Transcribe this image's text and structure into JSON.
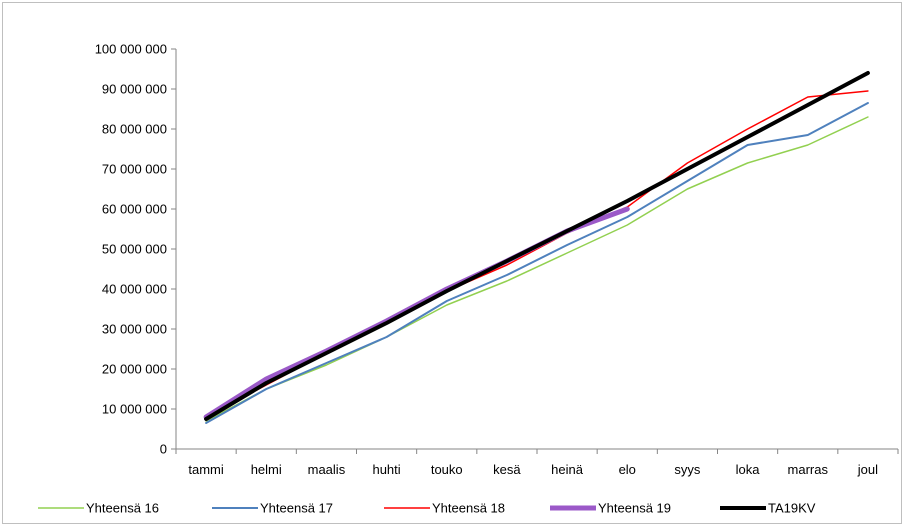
{
  "chart_data": {
    "type": "line",
    "title": "",
    "xlabel": "",
    "ylabel": "",
    "categories": [
      "tammi",
      "helmi",
      "maalis",
      "huhti",
      "touko",
      "kesä",
      "heinä",
      "elo",
      "syys",
      "loka",
      "marras",
      "joul"
    ],
    "ylim": [
      0,
      100000000
    ],
    "yticks": [
      0,
      10000000,
      20000000,
      30000000,
      40000000,
      50000000,
      60000000,
      70000000,
      80000000,
      90000000,
      100000000
    ],
    "ytick_labels": [
      "0",
      "10 000 000",
      "20 000 000",
      "30 000 000",
      "40 000 000",
      "50 000 000",
      "60 000 000",
      "70 000 000",
      "80 000 000",
      "90 000 000",
      "100 000 000"
    ],
    "grid": false,
    "legend_position": "bottom",
    "series": [
      {
        "name": "Yhteensä 16",
        "color": "#92d050",
        "width": 1.5,
        "values": [
          7000000,
          15000000,
          21000000,
          28000000,
          36000000,
          42000000,
          49000000,
          56000000,
          65000000,
          71500000,
          76000000,
          83000000
        ]
      },
      {
        "name": "Yhteensä 17",
        "color": "#4f81bd",
        "width": 2,
        "values": [
          6500000,
          15000000,
          21500000,
          28000000,
          37000000,
          43500000,
          51000000,
          58000000,
          67000000,
          76000000,
          78500000,
          86500000
        ]
      },
      {
        "name": "Yhteensä 18",
        "color": "#ff0000",
        "width": 1.5,
        "values": [
          8000000,
          16000000,
          24000000,
          31500000,
          39500000,
          46000000,
          54000000,
          60500000,
          71500000,
          80000000,
          88000000,
          89500000
        ]
      },
      {
        "name": "Yhteensä 19",
        "color": "#9b59c8",
        "width": 5,
        "values": [
          8000000,
          17500000,
          24500000,
          32000000,
          40000000,
          47000000,
          54500000,
          60000000,
          null,
          null,
          null,
          null
        ]
      },
      {
        "name": "TA19KV",
        "color": "#000000",
        "width": 4,
        "values": [
          7500000,
          16500000,
          24000000,
          31500000,
          39500000,
          47000000,
          54500000,
          62000000,
          70000000,
          78000000,
          86000000,
          94000000
        ]
      }
    ]
  }
}
